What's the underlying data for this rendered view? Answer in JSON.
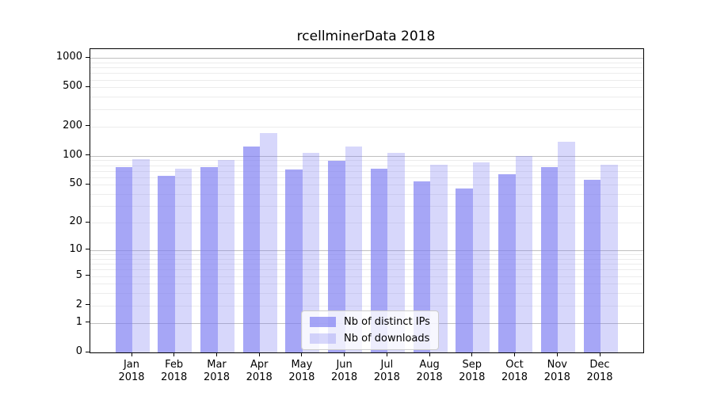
{
  "chart_data": {
    "type": "bar",
    "title": "rcellminerData 2018",
    "categories": [
      "Jan",
      "Feb",
      "Mar",
      "Apr",
      "May",
      "Jun",
      "Jul",
      "Aug",
      "Sep",
      "Oct",
      "Nov",
      "Dec"
    ],
    "x_year": "2018",
    "series": [
      {
        "name": "Nb of distinct IPs",
        "color": "rgba(124,124,242,0.68)",
        "values": [
          76,
          62,
          76,
          124,
          72,
          88,
          73,
          54,
          46,
          65,
          77,
          56
        ]
      },
      {
        "name": "Nb of downloads",
        "color": "rgba(124,124,242,0.30)",
        "values": [
          92,
          73,
          90,
          171,
          107,
          125,
          107,
          81,
          86,
          100,
          140,
          81
        ]
      }
    ],
    "y_scale": "log1p",
    "y_ticks": [
      0,
      1,
      2,
      5,
      10,
      20,
      50,
      100,
      200,
      500,
      1000
    ],
    "y_axis_max": 1230,
    "grid": true,
    "minor_grid_decades": [
      1,
      10,
      100
    ],
    "major_grid_values": [
      1,
      10,
      100,
      1000
    ],
    "legend_position": "lower center",
    "colors": {
      "background": "#ffffff",
      "axis": "#000000",
      "major_grid": "#c0c0c0",
      "minor_grid": "#ececec",
      "text": "#000000"
    }
  }
}
